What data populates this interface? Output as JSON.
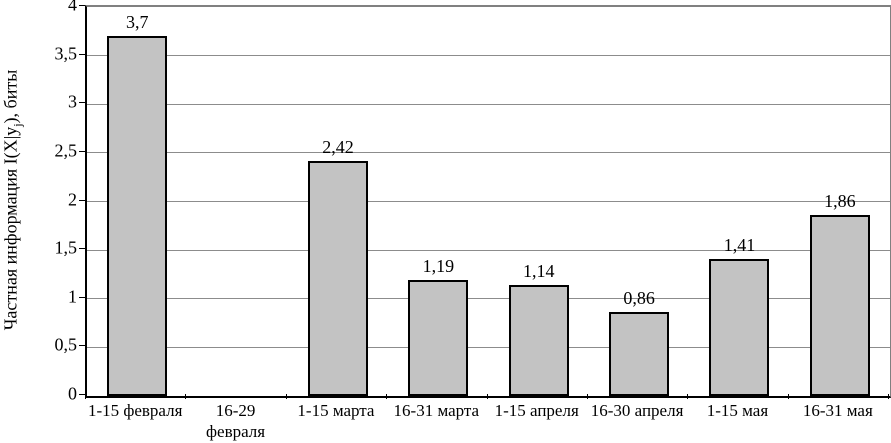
{
  "chart_data": {
    "type": "bar",
    "title": "",
    "xlabel": "",
    "ylabel": {
      "prefix": "Частная информация I(X|y",
      "sub": "j",
      "suffix": "), биты"
    },
    "ylim": [
      0,
      4
    ],
    "ytick_step": 0.5,
    "grid": true,
    "legend_position": "none",
    "bar_color": "#c3c3c3",
    "bar_border_color": "#000000",
    "gridline_color": "#8c8c8c",
    "yticks": [
      {
        "value": 0,
        "label": "0"
      },
      {
        "value": 0.5,
        "label": "0,5"
      },
      {
        "value": 1,
        "label": "1"
      },
      {
        "value": 1.5,
        "label": "1,5"
      },
      {
        "value": 2,
        "label": "2"
      },
      {
        "value": 2.5,
        "label": "2,5"
      },
      {
        "value": 3,
        "label": "3"
      },
      {
        "value": 3.5,
        "label": "3,5"
      },
      {
        "value": 4,
        "label": "4"
      }
    ],
    "categories": [
      "1-15 февраля",
      "16-29\nфевраля",
      "1-15 марта",
      "16-31 марта",
      "1-15 апреля",
      "16-30 апреля",
      "1-15 мая",
      "16-31 мая"
    ],
    "values": [
      3.7,
      0,
      2.42,
      1.19,
      1.14,
      0.86,
      1.41,
      1.86
    ],
    "value_labels": [
      "3,7",
      "",
      "2,42",
      "1,19",
      "1,14",
      "0,86",
      "1,41",
      "1,86"
    ]
  }
}
